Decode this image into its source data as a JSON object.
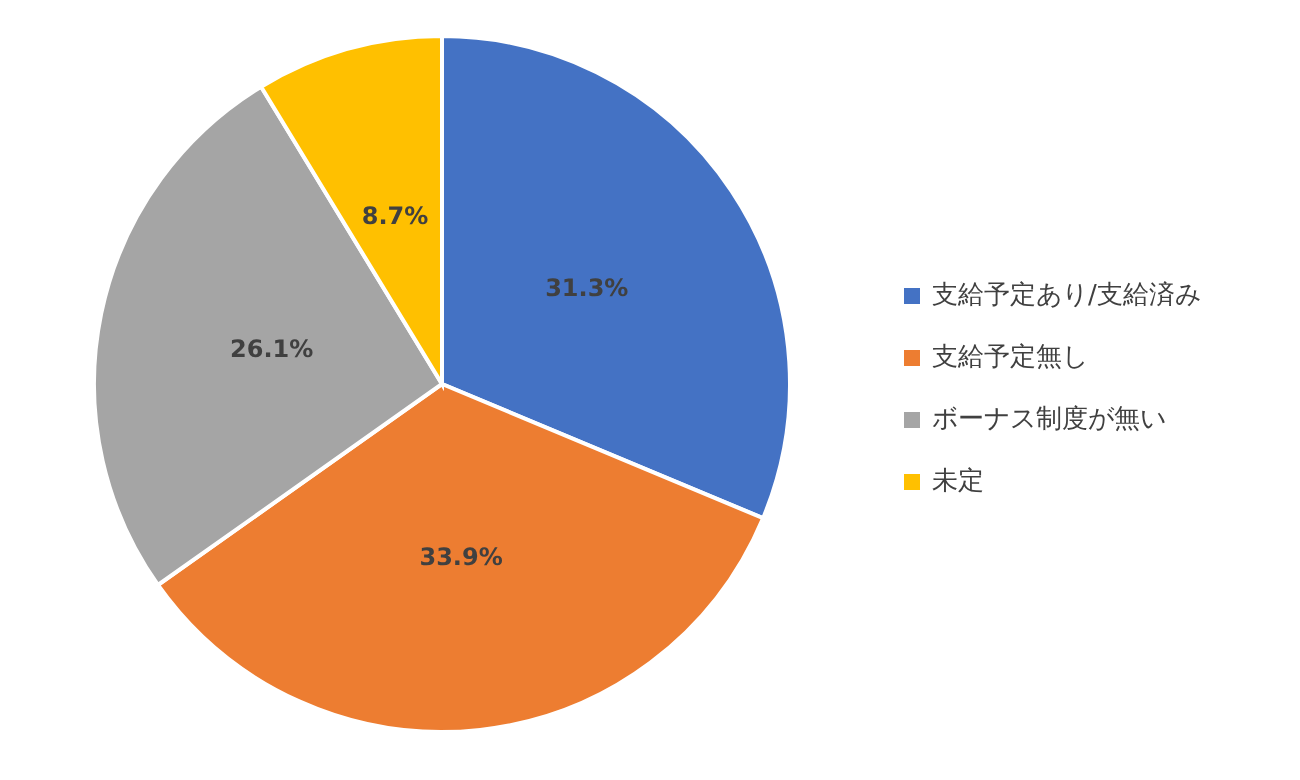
{
  "chart_data": {
    "type": "pie",
    "categories": [
      "支給予定あり/支給済み",
      "支給予定無し",
      "ボーナス制度が無い",
      "未定"
    ],
    "values": [
      31.3,
      33.9,
      26.1,
      8.7
    ],
    "colors": [
      "#4472c4",
      "#ed7d31",
      "#a5a5a5",
      "#ffc000"
    ],
    "value_labels": [
      "31.3%",
      "33.9%",
      "26.1%",
      "8.7%"
    ],
    "legend": "right"
  }
}
